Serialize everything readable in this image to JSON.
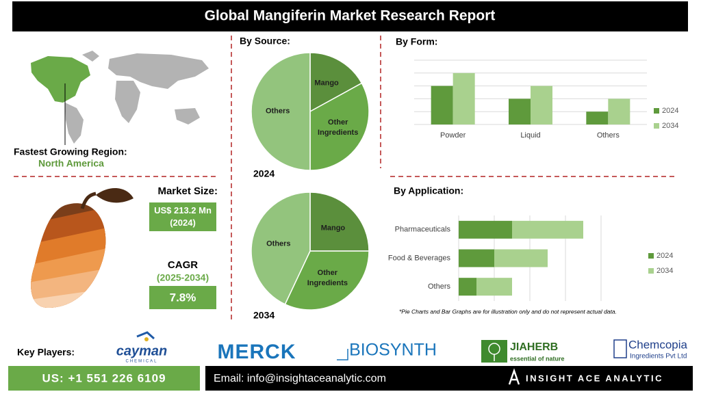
{
  "title": "Global Mangiferin Market Research Report",
  "region": {
    "label": "Fastest Growing Region:",
    "value": "North America"
  },
  "market_size": {
    "label": "Market Size:",
    "value": "US$ 213.2 Mn (2024)"
  },
  "cagr": {
    "label": "CAGR",
    "period": "(2025-2034)",
    "value": "7.8%"
  },
  "by_source": "By Source:",
  "chart_data": [
    {
      "type": "pie",
      "title": "2024",
      "categories": [
        "Mango",
        "Other Ingredients",
        "Others"
      ],
      "values": [
        17,
        33,
        50
      ],
      "colors": [
        "#5b8f3c",
        "#6aaa48",
        "#93c47d"
      ]
    },
    {
      "type": "pie",
      "title": "2034",
      "categories": [
        "Mango",
        "Other Ingredients",
        "Others"
      ],
      "values": [
        25,
        32,
        43
      ],
      "colors": [
        "#5b8f3c",
        "#6aaa48",
        "#93c47d"
      ]
    },
    {
      "type": "bar",
      "orientation": "vertical",
      "title": "By Form:",
      "categories": [
        "Powder",
        "Liquid",
        "Others"
      ],
      "series": [
        {
          "name": "2024",
          "color": "#5f9a3c",
          "values": [
            3,
            2,
            1
          ]
        },
        {
          "name": "2034",
          "color": "#a9d18e",
          "values": [
            4,
            3,
            2
          ]
        }
      ],
      "ylim": [
        0,
        5
      ],
      "yticks": [
        0,
        1,
        2,
        3,
        4,
        5
      ],
      "grid": true,
      "legend": "right"
    },
    {
      "type": "bar",
      "orientation": "horizontal",
      "stacked": true,
      "title": "By Application:",
      "categories": [
        "Pharmaceuticals",
        "Food & Beverages",
        "Others"
      ],
      "series": [
        {
          "name": "2024",
          "color": "#5f9a3c",
          "values": [
            1.5,
            1,
            0.5
          ]
        },
        {
          "name": "2034",
          "color": "#a9d18e",
          "values": [
            2,
            1.5,
            1
          ]
        }
      ],
      "xlim": [
        0,
        4
      ],
      "xticks": [
        0,
        1,
        2,
        3,
        4
      ],
      "grid": true,
      "legend": "right"
    }
  ],
  "note": "*Pie Charts and Bar Graphs are for illustration only and do not represent actual data.",
  "key_players": {
    "label": "Key Players:",
    "logos": [
      {
        "name": "cayman",
        "sub": "CHEMICAL"
      },
      {
        "name": "MERCK"
      },
      {
        "name": "BIOSYNTH"
      },
      {
        "name": "JIAHERB",
        "sub": "essential of nature"
      },
      {
        "name": "Chemcopia",
        "sub": "Ingredients Pvt Ltd"
      }
    ]
  },
  "footer": {
    "phone": "US: +1 551 226 6109",
    "email": "Email: info@insightaceanalytic.com",
    "brand": "INSIGHT ACE ANALYTIC"
  }
}
